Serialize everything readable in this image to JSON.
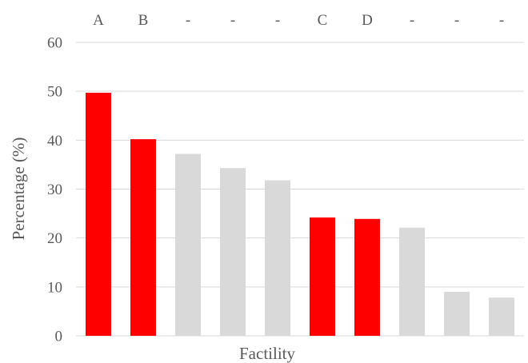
{
  "chart_data": {
    "type": "bar",
    "categories": [
      "A",
      "B",
      "-",
      "-",
      "-",
      "C",
      "D",
      "-",
      "-",
      "-"
    ],
    "values": [
      49.7,
      40.2,
      37.2,
      34.3,
      31.8,
      24.2,
      23.9,
      22.1,
      9.0,
      7.8
    ],
    "highlighted": [
      true,
      true,
      false,
      false,
      false,
      true,
      true,
      false,
      false,
      false
    ],
    "xlabel": "Factility",
    "ylabel": "Percentage  (%)",
    "ylim": [
      0,
      60
    ],
    "yticks": [
      0,
      10,
      20,
      30,
      40,
      50,
      60
    ],
    "grid": true,
    "category_labels_position": "top",
    "colors": {
      "highlight": "#ff0000",
      "other": "#d9d9d9"
    }
  }
}
